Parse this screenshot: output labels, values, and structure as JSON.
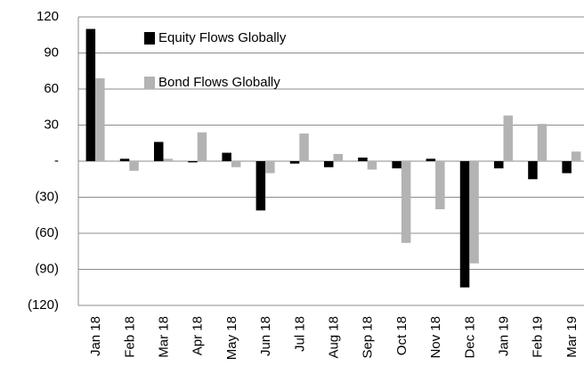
{
  "chart_data": {
    "type": "bar",
    "categories": [
      "Jan 18",
      "Feb 18",
      "Mar 18",
      "Apr 18",
      "May 18",
      "Jun 18",
      "Jul 18",
      "Aug 18",
      "Sep 18",
      "Oct 18",
      "Nov 18",
      "Dec 18",
      "Jan 19",
      "Feb 19",
      "Mar 19"
    ],
    "series": [
      {
        "name": "Equity Flows Globally",
        "color": "#000000",
        "values": [
          110,
          2,
          16,
          -1,
          7,
          -41,
          -2,
          -5,
          3,
          -6,
          2,
          -105,
          -6,
          -15,
          -10
        ]
      },
      {
        "name": "Bond Flows Globally",
        "color": "#b3b3b3",
        "values": [
          69,
          -8,
          2,
          24,
          -5,
          -10,
          23,
          6,
          -7,
          -68,
          -40,
          -85,
          38,
          31,
          8
        ]
      }
    ],
    "ylim": [
      -120,
      120
    ],
    "yticks": [
      {
        "value": -120,
        "label": "(120)"
      },
      {
        "value": -90,
        "label": "(90)"
      },
      {
        "value": -60,
        "label": "(60)"
      },
      {
        "value": -30,
        "label": "(30)"
      },
      {
        "value": 0,
        "label": "-"
      },
      30,
      60,
      90,
      120
    ],
    "grid": true
  }
}
